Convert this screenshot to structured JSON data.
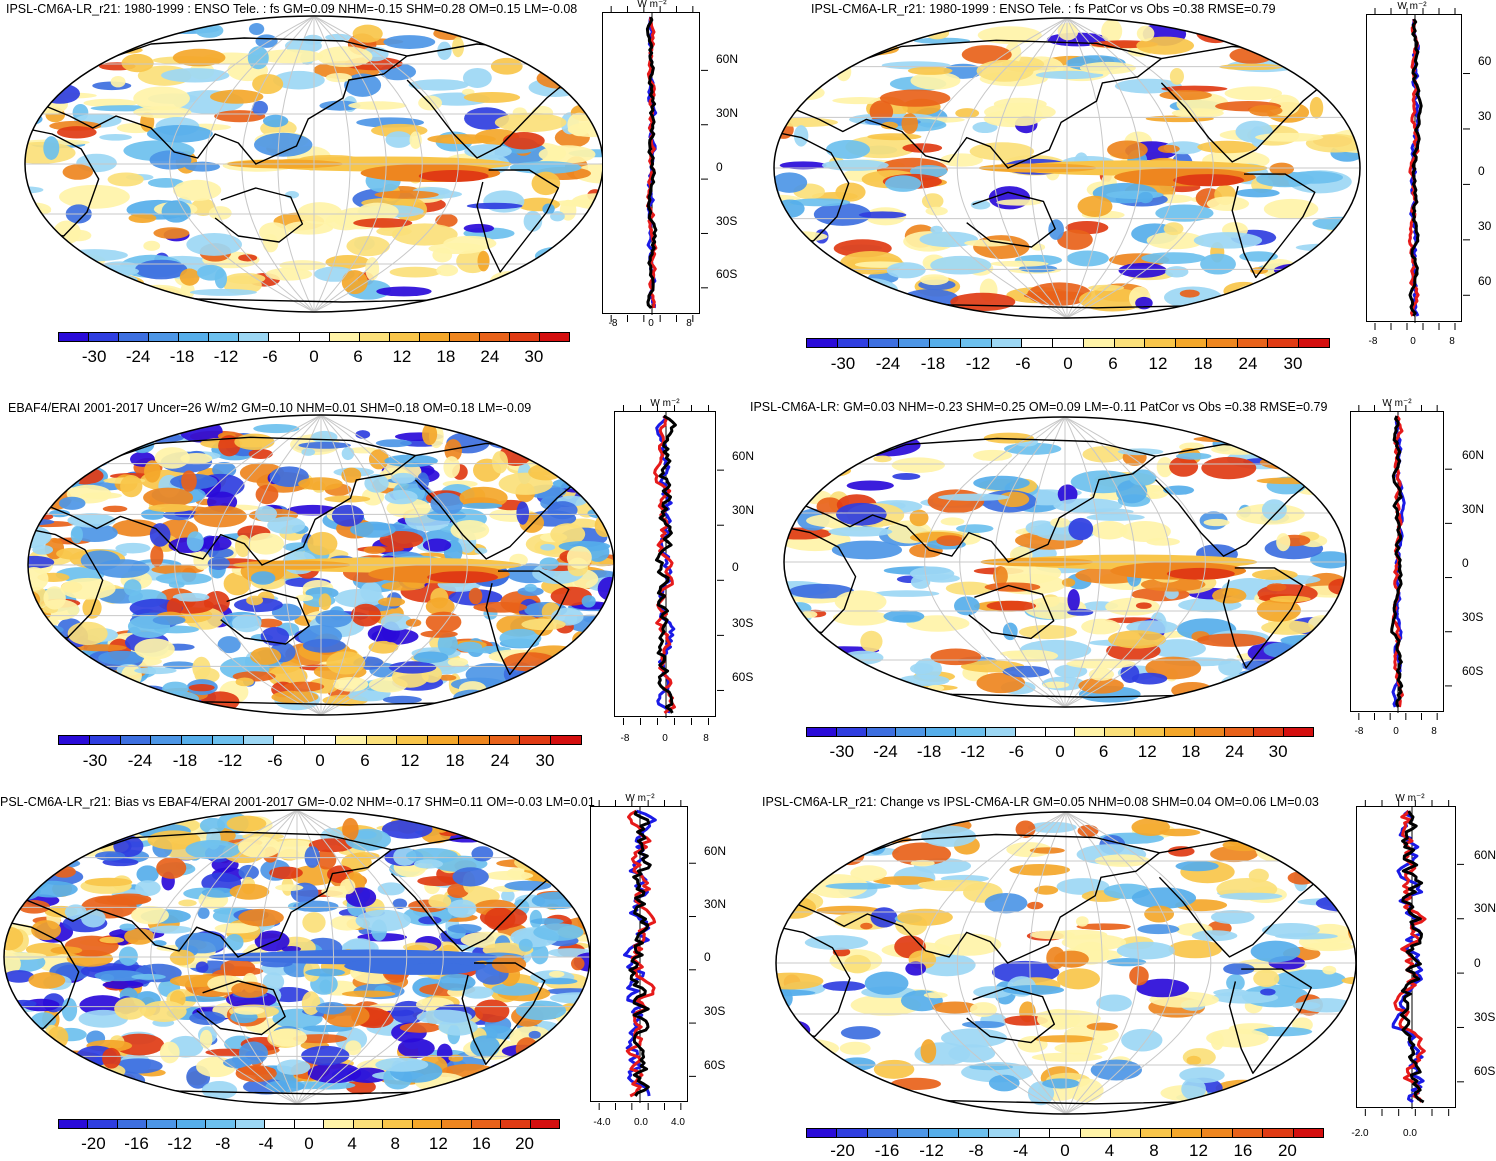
{
  "panels": [
    {
      "title": "IPSL-CM6A-LR_r21: 1980-1999 : ENSO Tele. : fs GM=0.09 NHM=-0.15 SHM=0.28 OM=0.15 LM=-0.08",
      "profile_unit": "W m⁻²",
      "lat_labels": [
        "60N",
        "30N",
        "0",
        "30S",
        "60S"
      ],
      "x_ticks": [
        "-8",
        "0",
        "8"
      ],
      "colorbar_labels": [
        "-30",
        "-24",
        "-18",
        "-12",
        "-6",
        "0",
        "6",
        "12",
        "18",
        "24",
        "30"
      ]
    },
    {
      "title": "IPSL-CM6A-LR_r21: 1980-1999 : ENSO Tele. : fs PatCor vs Obs =0.38 RMSE=0.79",
      "profile_unit": "W m⁻²",
      "lat_labels": [
        "60",
        "30",
        "0",
        "30",
        "60"
      ],
      "x_ticks": [
        "-8",
        "0",
        "8"
      ],
      "colorbar_labels": [
        "-30",
        "-24",
        "-18",
        "-12",
        "-6",
        "0",
        "6",
        "12",
        "18",
        "24",
        "30"
      ]
    },
    {
      "title": "EBAF4/ERAI 2001-2017 Uncer=26 W/m2 GM=0.10 NHM=0.01 SHM=0.18 OM=0.18 LM=-0.09",
      "profile_unit": "W m⁻²",
      "lat_labels": [
        "60N",
        "30N",
        "0",
        "30S",
        "60S"
      ],
      "x_ticks": [
        "-8",
        "0",
        "8"
      ],
      "colorbar_labels": [
        "-30",
        "-24",
        "-18",
        "-12",
        "-6",
        "0",
        "6",
        "12",
        "18",
        "24",
        "30"
      ]
    },
    {
      "title": "IPSL-CM6A-LR: GM=0.03 NHM=-0.23 SHM=0.25 OM=0.09 LM=-0.11 PatCor vs Obs =0.38 RMSE=0.79",
      "profile_unit": "W m⁻²",
      "lat_labels": [
        "60N",
        "30N",
        "0",
        "30S",
        "60S"
      ],
      "x_ticks": [
        "-8",
        "0",
        "8"
      ],
      "colorbar_labels": [
        "-30",
        "-24",
        "-18",
        "-12",
        "-6",
        "0",
        "6",
        "12",
        "18",
        "24",
        "30"
      ]
    },
    {
      "title": "PSL-CM6A-LR_r21: Bias vs EBAF4/ERAI 2001-2017 GM=-0.02 NHM=-0.17 SHM=0.11 OM=-0.03 LM=0.01",
      "profile_unit": "W m⁻²",
      "lat_labels": [
        "60N",
        "30N",
        "0",
        "30S",
        "60S"
      ],
      "x_ticks": [
        "-4.0",
        "0.0",
        "4.0"
      ],
      "colorbar_labels": [
        "-20",
        "-16",
        "-12",
        "-8",
        "-4",
        "0",
        "4",
        "8",
        "12",
        "16",
        "20"
      ]
    },
    {
      "title": "IPSL-CM6A-LR_r21: Change vs IPSL-CM6A-LR GM=0.05 NHM=0.08 SHM=0.04 OM=0.06 LM=0.03",
      "profile_unit": "W m⁻²",
      "lat_labels": [
        "60N",
        "30N",
        "0",
        "30S",
        "60S"
      ],
      "x_ticks": [
        "-2.0",
        "0.0"
      ],
      "colorbar_labels": [
        "-20",
        "-16",
        "-12",
        "-8",
        "-4",
        "0",
        "4",
        "8",
        "12",
        "16",
        "20"
      ]
    }
  ],
  "palette": [
    "#2a0bd9",
    "#2f3ee0",
    "#3d6fe0",
    "#4d96e6",
    "#56aeea",
    "#6cc0ee",
    "#9cd7f4",
    "#ffffff",
    "#ffffff",
    "#fff3a8",
    "#fbe07a",
    "#f8c54a",
    "#f4a72a",
    "#ee861f",
    "#e8621a",
    "#e03b14",
    "#d40f0f"
  ]
}
